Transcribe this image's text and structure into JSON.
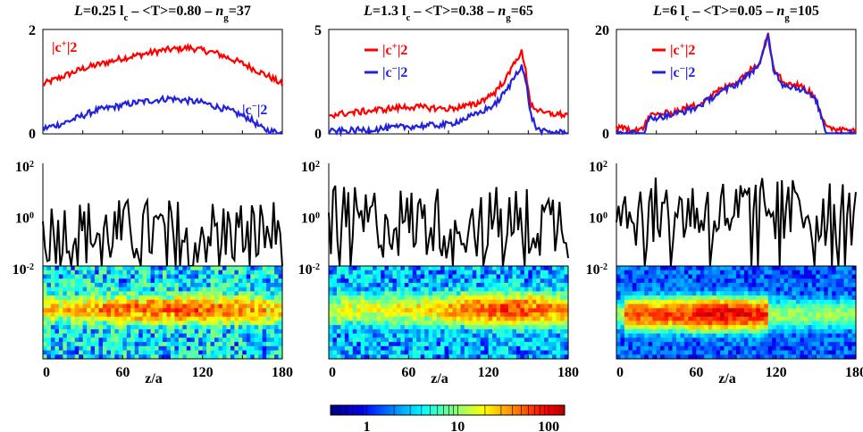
{
  "chart_data": {
    "type": "line",
    "panels": [
      {
        "title_parts": [
          "L",
          "=0.25 l",
          "c",
          " – <T>=0.80 – ",
          "n",
          "g",
          "=37"
        ],
        "top": {
          "ylim": [
            0,
            2
          ],
          "yticks": [
            "0",
            "2"
          ],
          "series": [
            {
              "name": "|c+|2",
              "color": "#ff0000",
              "profile": [
                [
                  0,
                  0.95
                ],
                [
                  10,
                  1.05
                ],
                [
                  30,
                  1.25
                ],
                [
                  60,
                  1.45
                ],
                [
                  90,
                  1.6
                ],
                [
                  110,
                  1.65
                ],
                [
                  130,
                  1.55
                ],
                [
                  150,
                  1.35
                ],
                [
                  170,
                  1.1
                ],
                [
                  180,
                  0.95
                ]
              ]
            },
            {
              "name": "|c−|2",
              "color": "#2222dd",
              "profile": [
                [
                  0,
                  0.1
                ],
                [
                  15,
                  0.2
                ],
                [
                  40,
                  0.45
                ],
                [
                  70,
                  0.6
                ],
                [
                  95,
                  0.68
                ],
                [
                  120,
                  0.6
                ],
                [
                  140,
                  0.45
                ],
                [
                  155,
                  0.3
                ],
                [
                  165,
                  0.1
                ],
                [
                  172,
                  0.05
                ],
                [
                  180,
                  0.02
                ]
              ]
            }
          ],
          "legend_labels": {
            "plus": "|c",
            "plus_sup": "+",
            "plus_pow": "|2",
            "minus": "|c",
            "minus_sup": "−",
            "minus_pow": "|2"
          }
        },
        "middle": {
          "yticks": [
            "10",
            "10",
            "10"
          ],
          "ytick_exp": [
            "2",
            "0",
            "-2"
          ],
          "mean_log": -0.7,
          "spread": 0.85
        },
        "heat": {
          "bands": [
            {
              "center": 0.45,
              "width": 0.12,
              "peak": 4
            }
          ],
          "max": 8
        },
        "xticks": [
          "0",
          "60",
          "120",
          "180"
        ]
      },
      {
        "title_parts": [
          "L",
          "=1.3 l",
          "c",
          " – <T>=0.38 – ",
          "n",
          "g",
          "=65"
        ],
        "top": {
          "ylim": [
            0,
            5
          ],
          "yticks": [
            "0",
            "5"
          ],
          "series": [
            {
              "name": "|c+|2",
              "color": "#ff0000",
              "profile": [
                [
                  0,
                  0.9
                ],
                [
                  30,
                  1.1
                ],
                [
                  60,
                  1.3
                ],
                [
                  90,
                  1.2
                ],
                [
                  110,
                  1.4
                ],
                [
                  125,
                  2.0
                ],
                [
                  135,
                  2.8
                ],
                [
                  140,
                  3.5
                ],
                [
                  145,
                  3.9
                ],
                [
                  148,
                  3.0
                ],
                [
                  152,
                  1.4
                ],
                [
                  160,
                  1.0
                ],
                [
                  180,
                  0.9
                ]
              ]
            },
            {
              "name": "|c−|2",
              "color": "#2222dd",
              "profile": [
                [
                  0,
                  0.1
                ],
                [
                  30,
                  0.2
                ],
                [
                  60,
                  0.35
                ],
                [
                  90,
                  0.45
                ],
                [
                  110,
                  0.9
                ],
                [
                  125,
                  1.4
                ],
                [
                  135,
                  2.2
                ],
                [
                  140,
                  2.8
                ],
                [
                  145,
                  3.3
                ],
                [
                  149,
                  2.2
                ],
                [
                  152,
                  0.9
                ],
                [
                  156,
                  0.3
                ],
                [
                  160,
                  0.1
                ],
                [
                  180,
                  0.05
                ]
              ]
            }
          ],
          "legend_labels": {
            "plus": "|c",
            "plus_sup": "+",
            "plus_pow": "|2",
            "minus": "|c",
            "minus_sup": "−",
            "minus_pow": "|2"
          }
        },
        "middle": {
          "yticks": [
            "10",
            "10",
            "10"
          ],
          "ytick_exp": [
            "2",
            "0",
            "-2"
          ],
          "mean_log": -0.3,
          "spread": 0.9
        },
        "heat": {
          "bands": [
            {
              "center": 0.45,
              "width": 0.14,
              "peak": 8
            }
          ],
          "max": 14,
          "hot_x": 0.74
        },
        "xticks": [
          "0",
          "60",
          "120",
          "180"
        ]
      },
      {
        "title_parts": [
          "L",
          "=6 l",
          "c",
          " – <T>=0.05 – ",
          "n",
          "g",
          "=105"
        ],
        "top": {
          "ylim": [
            0,
            20
          ],
          "yticks": [
            "0",
            "20"
          ],
          "series": [
            {
              "name": "|c+|2",
              "color": "#ff0000",
              "profile": [
                [
                  0,
                  1.0
                ],
                [
                  20,
                  1.0
                ],
                [
                  25,
                  3.5
                ],
                [
                  40,
                  4.0
                ],
                [
                  60,
                  5.5
                ],
                [
                  75,
                  8
                ],
                [
                  90,
                  10
                ],
                [
                  100,
                  12
                ],
                [
                  108,
                  14
                ],
                [
                  114,
                  19.5
                ],
                [
                  118,
                  13
                ],
                [
                  125,
                  10
                ],
                [
                  140,
                  9
                ],
                [
                  150,
                  7
                ],
                [
                  155,
                  3
                ],
                [
                  158,
                  1.0
                ],
                [
                  180,
                  1.0
                ]
              ]
            },
            {
              "name": "|c−|2",
              "color": "#2222dd",
              "profile": [
                [
                  0,
                  0.05
                ],
                [
                  20,
                  0.05
                ],
                [
                  25,
                  3.0
                ],
                [
                  40,
                  3.5
                ],
                [
                  60,
                  5.0
                ],
                [
                  75,
                  7.5
                ],
                [
                  90,
                  9.5
                ],
                [
                  100,
                  11.5
                ],
                [
                  108,
                  13.5
                ],
                [
                  114,
                  18.8
                ],
                [
                  118,
                  12.5
                ],
                [
                  125,
                  9.5
                ],
                [
                  140,
                  8.5
                ],
                [
                  150,
                  6.5
                ],
                [
                  155,
                  2.5
                ],
                [
                  158,
                  0.05
                ],
                [
                  180,
                  0.05
                ]
              ]
            }
          ],
          "legend_labels": {
            "plus": "|c",
            "plus_sup": "+",
            "plus_pow": "|2",
            "minus": "|c",
            "minus_sup": "−",
            "minus_pow": "|2"
          }
        },
        "middle": {
          "yticks": [
            "10",
            "10",
            "10"
          ],
          "ytick_exp": [
            "2",
            "0",
            "-2"
          ],
          "mean_log": 0.1,
          "spread": 0.85
        },
        "heat": {
          "bands": [
            {
              "center": 0.5,
              "width": 0.12,
              "peak": 50
            }
          ],
          "max": 60,
          "hot_x": 0.45
        },
        "xticks": [
          "0",
          "60",
          "120",
          "180"
        ]
      }
    ],
    "xlabel": "z/a",
    "colorbar": {
      "ticks": [
        "1",
        "10",
        "100"
      ],
      "scale": "log",
      "range": [
        0.4,
        150
      ]
    }
  }
}
